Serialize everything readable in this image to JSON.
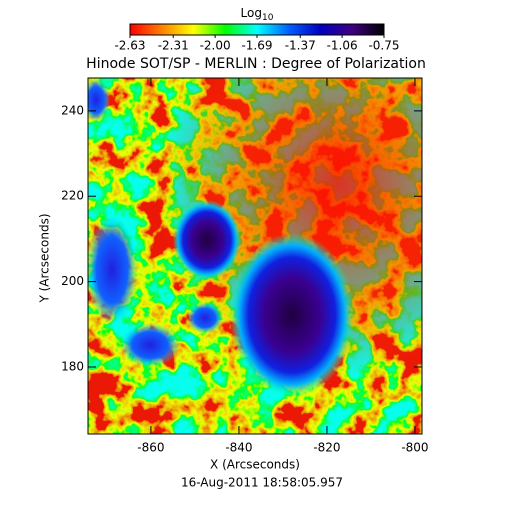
{
  "chart_data": {
    "type": "heatmap",
    "title": "Hinode SOT/SP - MERLIN : Degree of Polarization",
    "x_label": "X (Arcseconds)",
    "y_label": "Y (Arcseconds)",
    "footer": "16-Aug-2011 18:58:05.957",
    "xlim": [
      -874.3,
      -798.4
    ],
    "xticks": [
      -860,
      -840,
      -820,
      -800
    ],
    "ylim": [
      164.3,
      247.7
    ],
    "yticks": [
      180,
      200,
      220,
      240
    ],
    "colorbar": {
      "label": "Log",
      "label_sub": "10",
      "range": [
        -2.63,
        -0.75
      ],
      "ticks": [
        -2.63,
        -2.31,
        {
          "value": -2.0,
          "label": "-2.00"
        },
        -1.69,
        -1.37,
        -1.06,
        -0.75
      ],
      "colors": [
        "#ff0000",
        "#ff8000",
        "#ffff00",
        "#00ff00",
        "#00ffff",
        "#0060ff",
        "#0000c0",
        "#400080",
        "#000000"
      ]
    }
  }
}
